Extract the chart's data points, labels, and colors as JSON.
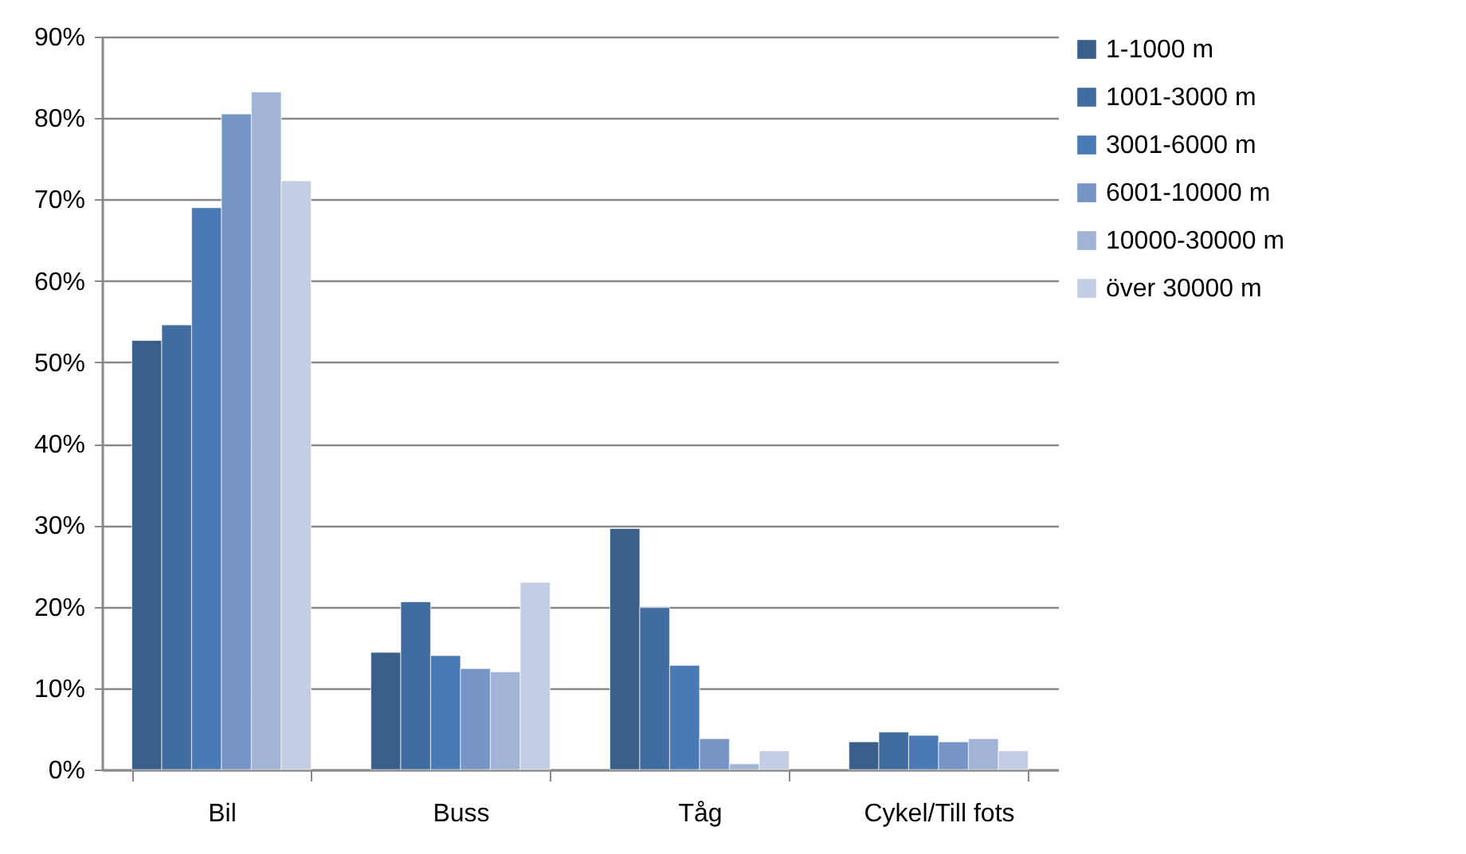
{
  "chart_data": {
    "type": "bar",
    "categories": [
      "Bil",
      "Buss",
      "Tåg",
      "Cykel/Till fots"
    ],
    "series": [
      {
        "name": "1-1000 m",
        "color": "#3a5f8b",
        "values": [
          52.7,
          14.4,
          29.6,
          3.4
        ]
      },
      {
        "name": "1001-3000 m",
        "color": "#416ca0",
        "values": [
          54.6,
          20.6,
          19.9,
          4.6
        ]
      },
      {
        "name": "3001-6000 m",
        "color": "#4a7ab5",
        "values": [
          69.0,
          14.0,
          12.8,
          4.2
        ]
      },
      {
        "name": "6001-10000 m",
        "color": "#7695c6",
        "values": [
          80.5,
          12.4,
          3.8,
          3.4
        ]
      },
      {
        "name": "10000-30000 m",
        "color": "#a2b4d6",
        "values": [
          83.2,
          12.0,
          0.7,
          3.8
        ]
      },
      {
        "name": "över 30000 m",
        "color": "#c3cde3",
        "values": [
          72.3,
          23.0,
          2.3,
          2.3
        ]
      }
    ],
    "ylim": [
      0,
      90
    ],
    "yticks": [
      {
        "value": 0,
        "label": "0%"
      },
      {
        "value": 10,
        "label": "10%"
      },
      {
        "value": 20,
        "label": "20%"
      },
      {
        "value": 30,
        "label": "30%"
      },
      {
        "value": 40,
        "label": "40%"
      },
      {
        "value": 50,
        "label": "50%"
      },
      {
        "value": 60,
        "label": "60%"
      },
      {
        "value": 70,
        "label": "70%"
      },
      {
        "value": 80,
        "label": "80%"
      },
      {
        "value": 90,
        "label": "90%"
      }
    ],
    "grid": "y",
    "legend": "right"
  }
}
